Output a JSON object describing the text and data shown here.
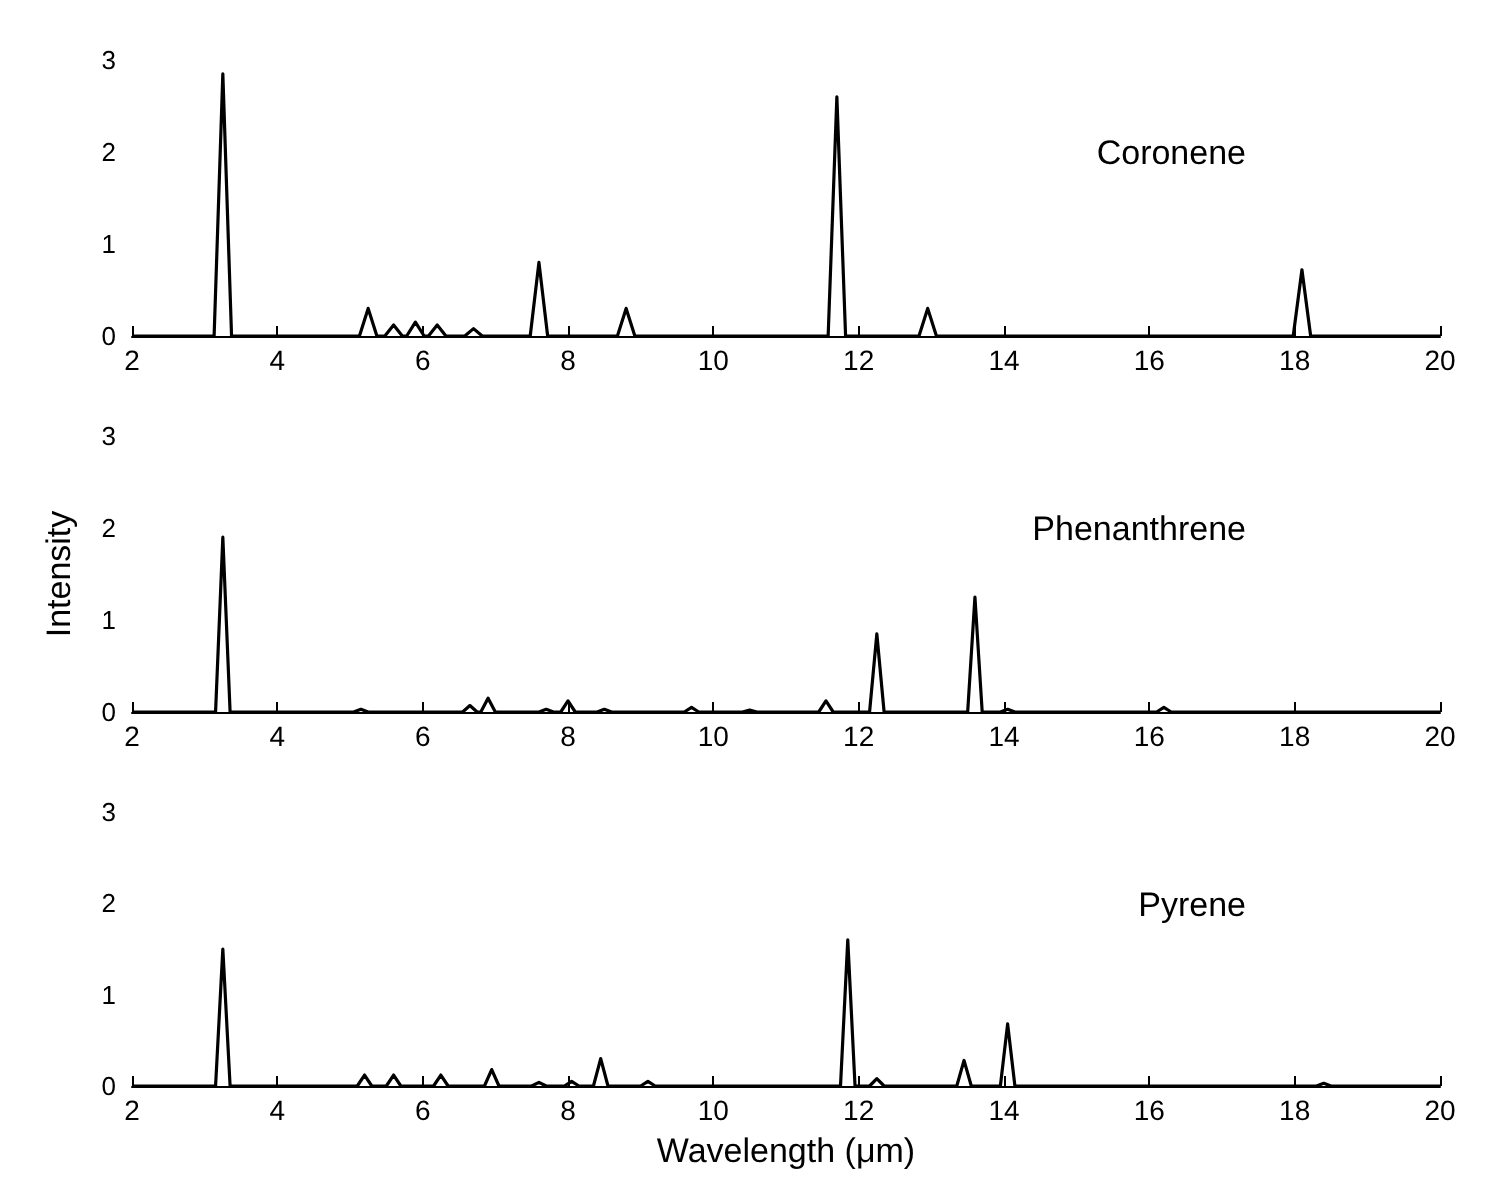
{
  "chart_data": [
    {
      "type": "line",
      "xlim": [
        2,
        20
      ],
      "xticks": [
        2,
        4,
        6,
        8,
        10,
        12,
        14,
        16,
        18,
        20
      ],
      "ylim": [
        0,
        3
      ],
      "yticks": [
        0,
        1,
        2,
        3
      ],
      "grid": false,
      "legend": false,
      "marker": "none",
      "line_style": "solid",
      "series": [
        {
          "name": "Coronene",
          "color": "#000000",
          "x": [
            2,
            3.13,
            3.25,
            3.37,
            5.13,
            5.25,
            5.37,
            5.48,
            5.6,
            5.72,
            5.78,
            5.9,
            6.02,
            6.08,
            6.2,
            6.32,
            6.58,
            6.7,
            6.82,
            7.48,
            7.6,
            7.72,
            8.68,
            8.8,
            8.92,
            11.58,
            11.7,
            11.82,
            12.83,
            12.95,
            13.07,
            17.98,
            18.1,
            18.22,
            20
          ],
          "values": [
            0,
            0,
            2.85,
            0,
            0,
            0.3,
            0,
            0,
            0.12,
            0,
            0,
            0.15,
            0,
            0,
            0.12,
            0,
            0,
            0.08,
            0,
            0,
            0.8,
            0,
            0,
            0.3,
            0,
            0,
            2.6,
            0,
            0,
            0.3,
            0,
            0,
            0.72,
            0,
            0
          ]
        }
      ]
    },
    {
      "type": "line",
      "ylabel": "Intensity",
      "xlim": [
        2,
        20
      ],
      "xticks": [
        2,
        4,
        6,
        8,
        10,
        12,
        14,
        16,
        18,
        20
      ],
      "ylim": [
        0,
        3
      ],
      "yticks": [
        0,
        1,
        2,
        3
      ],
      "grid": false,
      "legend": false,
      "marker": "none",
      "line_style": "solid",
      "series": [
        {
          "name": "Phenanthrene",
          "color": "#000000",
          "x": [
            2,
            3.15,
            3.25,
            3.35,
            5.05,
            5.15,
            5.25,
            6.55,
            6.65,
            6.75,
            6.8,
            6.9,
            7.0,
            7.6,
            7.7,
            7.8,
            7.9,
            8.0,
            8.1,
            8.4,
            8.5,
            8.6,
            9.6,
            9.7,
            9.8,
            10.4,
            10.5,
            10.6,
            11.45,
            11.55,
            11.65,
            12.15,
            12.25,
            12.35,
            13.5,
            13.6,
            13.7,
            13.95,
            14.05,
            14.15,
            16.1,
            16.2,
            16.3,
            20
          ],
          "values": [
            0,
            0,
            1.9,
            0,
            0,
            0.03,
            0,
            0,
            0.07,
            0,
            0,
            0.15,
            0,
            0,
            0.03,
            0,
            0,
            0.12,
            0,
            0,
            0.03,
            0,
            0,
            0.05,
            0,
            0,
            0.02,
            0,
            0,
            0.12,
            0,
            0,
            0.85,
            0,
            0,
            1.25,
            0,
            0,
            0.03,
            0,
            0,
            0.05,
            0,
            0
          ]
        }
      ]
    },
    {
      "type": "line",
      "xlabel": "Wavelength (μm)",
      "xlim": [
        2,
        20
      ],
      "xticks": [
        2,
        4,
        6,
        8,
        10,
        12,
        14,
        16,
        18,
        20
      ],
      "ylim": [
        0,
        3
      ],
      "yticks": [
        0,
        1,
        2,
        3
      ],
      "grid": false,
      "legend": false,
      "marker": "none",
      "line_style": "solid",
      "series": [
        {
          "name": "Pyrene",
          "color": "#000000",
          "x": [
            2,
            3.15,
            3.25,
            3.35,
            5.1,
            5.2,
            5.3,
            5.5,
            5.6,
            5.7,
            6.15,
            6.25,
            6.35,
            6.85,
            6.95,
            7.05,
            7.5,
            7.6,
            7.7,
            7.95,
            8.05,
            8.15,
            8.35,
            8.45,
            8.55,
            9.0,
            9.1,
            9.2,
            11.75,
            11.85,
            11.95,
            12.15,
            12.25,
            12.35,
            13.35,
            13.45,
            13.55,
            13.95,
            14.05,
            14.15,
            18.3,
            18.4,
            18.5,
            20
          ],
          "values": [
            0,
            0,
            1.5,
            0,
            0,
            0.12,
            0,
            0,
            0.12,
            0,
            0,
            0.12,
            0,
            0,
            0.18,
            0,
            0,
            0.04,
            0,
            0,
            0.05,
            0,
            0,
            0.3,
            0,
            0,
            0.05,
            0,
            0,
            1.6,
            0,
            0,
            0.08,
            0,
            0,
            0.28,
            0,
            0,
            0.68,
            0,
            0,
            0.03,
            0,
            0
          ]
        }
      ]
    }
  ]
}
